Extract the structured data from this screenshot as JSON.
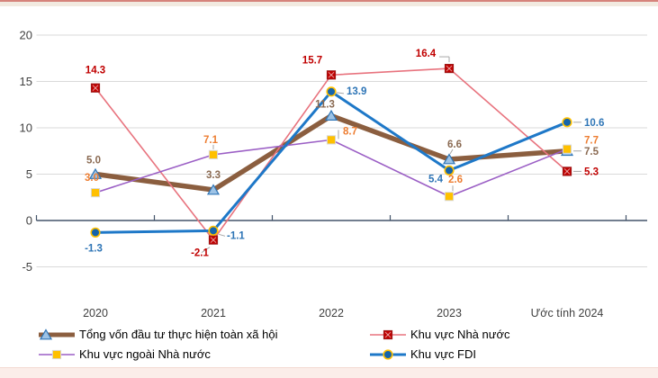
{
  "page": {
    "top_accent_color": "#D6837B",
    "top_band_color": "#F2EAE0",
    "bottom_band_color": "#FBEDE9",
    "background": "#FFFFFF"
  },
  "chart_data": {
    "type": "line",
    "title": "",
    "xlabel": "",
    "ylabel": "",
    "categories": [
      "2020",
      "2021",
      "2022",
      "2023",
      "Ước tính 2024"
    ],
    "ylim": [
      -5,
      20
    ],
    "yticks": [
      20,
      15,
      10,
      5,
      0,
      -5
    ],
    "grid": true,
    "grid_color": "#D9D9D9",
    "axis_color": "#44546A",
    "tick_label_color": "#404040",
    "leader_color": "#A6A6A6",
    "legend_position": "bottom",
    "geom": {
      "x0": 106,
      "dx": 131,
      "y0": 245,
      "ppu": 10.3,
      "left": 40.5,
      "right": 719,
      "xlabel_y": 352,
      "ylabel_x": 36
    },
    "series": [
      {
        "name": "Tổng vốn đầu tư thực hiện toàn xã  hội",
        "values": [
          5.0,
          3.3,
          11.3,
          6.6,
          7.5
        ],
        "line_color": "#8B5E3F",
        "line_width": 5.5,
        "marker": "triangle",
        "marker_fill": "#9DC3E6",
        "marker_stroke": "#2E75B6",
        "label_color": "#8A6A52",
        "label_pos": [
          {
            "dx": -2,
            "dy": -12
          },
          {
            "dx": 0,
            "dy": -13
          },
          {
            "dx": -7,
            "dy": -9
          },
          {
            "dx": 6,
            "dy": -13,
            "lead": [
              [
                1,
                -6,
                4,
                -11
              ]
            ]
          },
          {
            "dx": 19,
            "dy": 4,
            "a": "s",
            "lead": [
              [
                7,
                0,
                16,
                0
              ]
            ]
          }
        ]
      },
      {
        "name": "Khu vực Nhà nước",
        "values": [
          14.3,
          -2.1,
          15.7,
          16.4,
          5.3
        ],
        "line_color": "#E8737E",
        "line_width": 1.6,
        "marker": "square-x",
        "marker_fill": "#C00000",
        "marker_stroke": "#9C1A1A",
        "label_color": "#C00000",
        "label_pos": [
          {
            "dx": 0,
            "dy": -16
          },
          {
            "dx": -15,
            "dy": 18,
            "lead": [
              [
                -4,
                8,
                -13,
                14
              ]
            ]
          },
          {
            "dx": -21,
            "dy": -13
          },
          {
            "dx": -26,
            "dy": -13,
            "lead": [
              [
                0,
                -7,
                0,
                -13
              ],
              [
                0,
                -13,
                -11,
                -13
              ]
            ]
          },
          {
            "dx": 19,
            "dy": 4,
            "a": "s",
            "lead": [
              [
                7,
                0,
                16,
                0
              ]
            ]
          }
        ]
      },
      {
        "name": "Khu vực ngoài Nhà nước",
        "values": [
          3.0,
          7.1,
          8.7,
          2.6,
          7.7
        ],
        "line_color": "#9B5FC5",
        "line_width": 1.6,
        "marker": "square",
        "marker_fill": "#FFC000",
        "marker_stroke": "#D9D9D9",
        "label_color": "#ED7D31",
        "label_pos": [
          {
            "dx": -4,
            "dy": -13
          },
          {
            "dx": -3,
            "dy": -13,
            "lead": [
              [
                0,
                -6,
                0,
                -11
              ]
            ]
          },
          {
            "dx": 21,
            "dy": -6,
            "lead": [
              [
                8,
                -1,
                8,
                -11
              ]
            ]
          },
          {
            "dx": 7,
            "dy": -15,
            "lead": [
              [
                4,
                -6,
                4,
                -12
              ]
            ]
          },
          {
            "dx": 19,
            "dy": -6,
            "a": "s"
          }
        ]
      },
      {
        "name": "Khu vực FDI",
        "values": [
          -1.3,
          -1.1,
          13.9,
          5.4,
          10.6
        ],
        "line_color": "#1E78C8",
        "line_width": 3,
        "marker": "circle",
        "marker_fill": "#1564AB",
        "marker_stroke": "#FFC000",
        "label_color": "#2E75B6",
        "label_pos": [
          {
            "dx": -2,
            "dy": 21
          },
          {
            "dx": 15,
            "dy": 9,
            "a": "s",
            "lead": [
              [
                6,
                4,
                13,
                6
              ]
            ]
          },
          {
            "dx": 17,
            "dy": 3,
            "a": "s",
            "lead": [
              [
                6,
                1,
                14,
                2
              ]
            ]
          },
          {
            "dx": -7,
            "dy": 13,
            "a": "e"
          },
          {
            "dx": 19,
            "dy": 4,
            "a": "s",
            "lead": [
              [
                7,
                0,
                16,
                0
              ]
            ]
          }
        ]
      }
    ]
  }
}
